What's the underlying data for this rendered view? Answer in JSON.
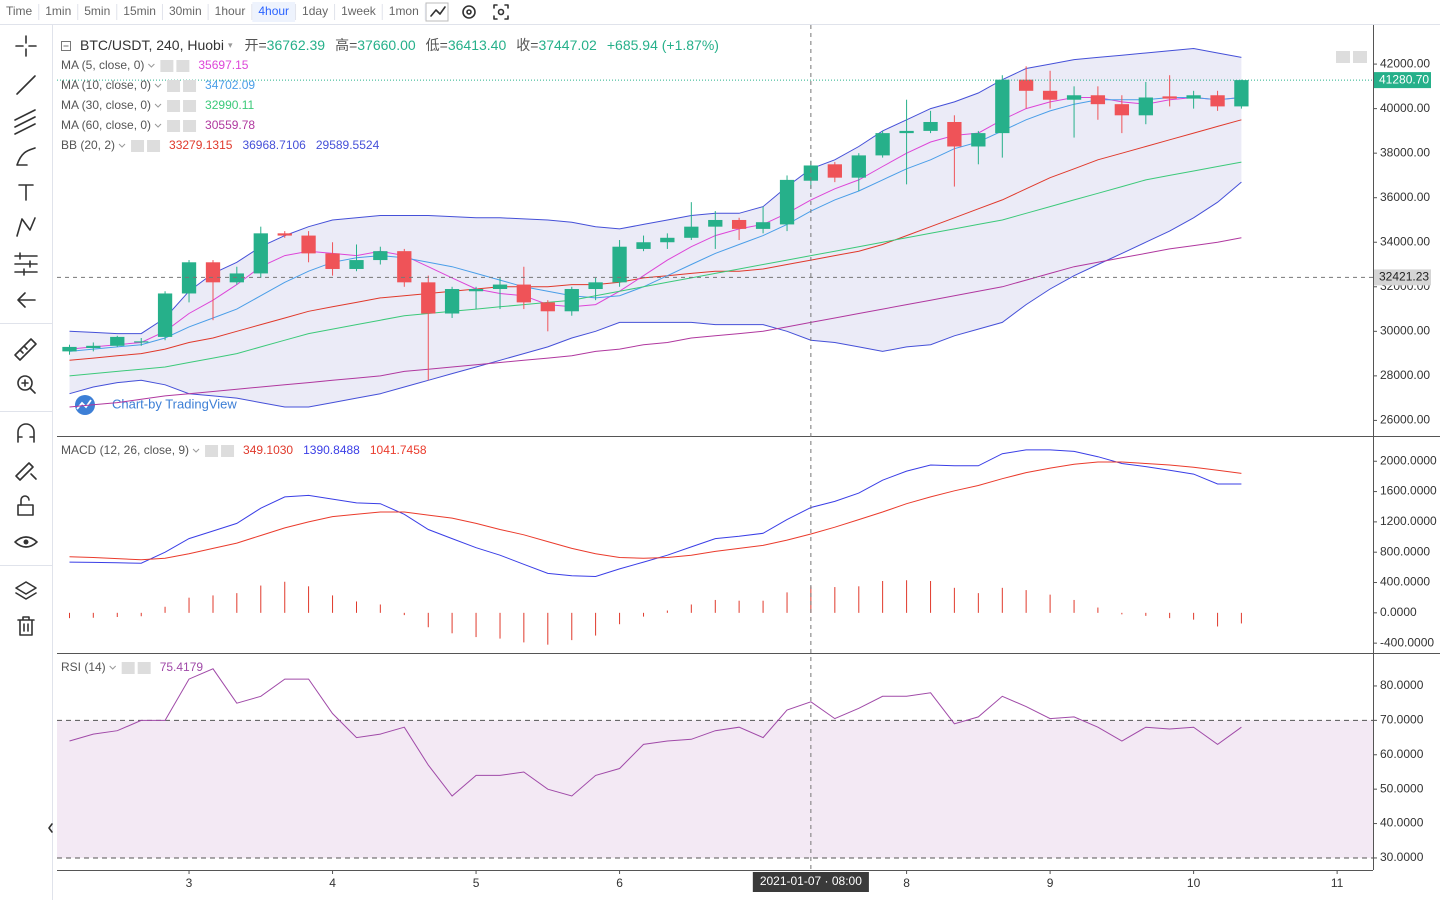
{
  "toolbar": {
    "intervals": [
      "Time",
      "1min",
      "5min",
      "15min",
      "30min",
      "1hour",
      "4hour",
      "1day",
      "1week",
      "1mon"
    ],
    "active": 6
  },
  "watermark": "Chart-by TradingView",
  "crosshair": {
    "x": 7.333,
    "price": 32421.23,
    "price_label": "32421.23",
    "date_label": "2021-01-07 · 08:00"
  },
  "chart_data": [
    {
      "type": "candlestick",
      "title": "BTC/USDT, 240, Huobi",
      "ohlc_legend": [
        {
          "label": "开=",
          "value": "36762.39"
        },
        {
          "label": "高=",
          "value": "37660.00"
        },
        {
          "label": "低=",
          "value": "36413.40"
        },
        {
          "label": "收=",
          "value": "37447.02"
        }
      ],
      "change": "+685.94 (+1.87%)",
      "up_color": "#26b08a",
      "down_color": "#ef5358",
      "x": [
        2.167,
        2.333,
        2.5,
        2.667,
        2.833,
        3,
        3.167,
        3.333,
        3.5,
        3.667,
        3.833,
        4,
        4.167,
        4.333,
        4.5,
        4.667,
        4.833,
        5,
        5.167,
        5.333,
        5.5,
        5.667,
        5.833,
        6,
        6.167,
        6.333,
        6.5,
        6.667,
        6.833,
        7,
        7.167,
        7.333,
        7.5,
        7.667,
        7.833,
        8,
        8.167,
        8.333,
        8.5,
        8.667,
        8.833,
        9,
        9.167,
        9.333,
        9.5,
        9.667,
        9.833,
        10,
        10.167,
        10.333
      ],
      "open": [
        29100,
        29250,
        29350,
        29500,
        29750,
        31700,
        33100,
        32200,
        32600,
        34400,
        34300,
        33500,
        32800,
        33200,
        33600,
        32200,
        30800,
        31800,
        31900,
        32100,
        31300,
        30900,
        31900,
        32200,
        33700,
        34000,
        34200,
        34700,
        35000,
        34600,
        34800,
        36762.39,
        37500,
        36900,
        37900,
        38900,
        39000,
        39400,
        38300,
        38900,
        41300,
        40800,
        40400,
        40600,
        40200,
        39700,
        40550,
        40450,
        40600,
        40100
      ],
      "high": [
        29400,
        29500,
        29800,
        29700,
        31800,
        33200,
        33200,
        32900,
        34700,
        34500,
        34500,
        34000,
        33900,
        33800,
        33700,
        32500,
        32000,
        32000,
        32400,
        32900,
        31400,
        32000,
        32400,
        34100,
        34300,
        34400,
        35800,
        35400,
        35100,
        35600,
        37000,
        37660,
        37600,
        38000,
        39000,
        40400,
        39900,
        39700,
        39000,
        41500,
        41900,
        41700,
        41000,
        41000,
        40600,
        41200,
        41500,
        40800,
        40800,
        41300
      ],
      "low": [
        28950,
        29100,
        29300,
        29350,
        29600,
        31300,
        30500,
        32100,
        32400,
        34200,
        33100,
        32500,
        32700,
        33000,
        32000,
        27800,
        30600,
        31000,
        31000,
        31000,
        30000,
        30700,
        31400,
        32000,
        33600,
        33700,
        34100,
        33700,
        34100,
        34400,
        34500,
        36413.4,
        36700,
        36300,
        37800,
        36600,
        38900,
        36500,
        37500,
        37800,
        40000,
        40000,
        38700,
        39500,
        38900,
        39300,
        40100,
        40000,
        39900,
        40000
      ],
      "close": [
        29300,
        29350,
        29750,
        29550,
        31700,
        33100,
        32200,
        32600,
        34400,
        34300,
        33500,
        32800,
        33200,
        33600,
        32200,
        30800,
        31900,
        31900,
        32100,
        31300,
        30900,
        31900,
        32200,
        33800,
        34000,
        34200,
        34700,
        35000,
        34600,
        34900,
        36800,
        37447.02,
        36900,
        37900,
        38900,
        39000,
        39400,
        38300,
        38900,
        41300,
        40800,
        40400,
        40600,
        40200,
        39700,
        40500,
        40450,
        40600,
        40100,
        41280.7
      ],
      "lines": [
        {
          "name": "MA (5, close, 0)",
          "color": "#dd45d8",
          "legend_value": "35697.15",
          "values": [
            29200,
            29300,
            29400,
            29500,
            30000,
            30800,
            31400,
            32100,
            32900,
            33400,
            33600,
            33500,
            33400,
            33600,
            33400,
            32900,
            32400,
            31900,
            31700,
            31600,
            31200,
            31100,
            31200,
            31800,
            32500,
            33200,
            33800,
            34300,
            34600,
            34800,
            35300,
            35900,
            36400,
            36800,
            37400,
            38000,
            38500,
            38800,
            38900,
            39500,
            40000,
            40300,
            40500,
            40500,
            40300,
            40200,
            40400,
            40500,
            40400,
            40500
          ]
        },
        {
          "name": "MA (10, close, 0)",
          "color": "#4a9ee8",
          "legend_value": "34702.09",
          "values": [
            29100,
            29200,
            29300,
            29400,
            29700,
            30200,
            30600,
            31000,
            31600,
            32200,
            32700,
            33100,
            33300,
            33400,
            33300,
            33100,
            32900,
            32600,
            32300,
            32000,
            31800,
            31600,
            31500,
            31600,
            32000,
            32500,
            33000,
            33500,
            33900,
            34300,
            34800,
            35400,
            35900,
            36300,
            36800,
            37300,
            37700,
            38200,
            38500,
            39000,
            39500,
            39900,
            40200,
            40400,
            40400,
            40400,
            40500,
            40500,
            40400,
            40500
          ]
        },
        {
          "name": "MA (30, close, 0)",
          "color": "#3cc97a",
          "legend_value": "32990.11",
          "values": [
            28000,
            28100,
            28200,
            28300,
            28400,
            28600,
            28800,
            29000,
            29300,
            29600,
            29900,
            30100,
            30300,
            30500,
            30700,
            30800,
            30900,
            31000,
            31100,
            31200,
            31300,
            31400,
            31600,
            31800,
            32000,
            32200,
            32400,
            32600,
            32800,
            33000,
            33200,
            33400,
            33600,
            33800,
            34000,
            34200,
            34400,
            34600,
            34800,
            35000,
            35300,
            35600,
            35900,
            36200,
            36500,
            36800,
            37000,
            37200,
            37400,
            37600
          ]
        },
        {
          "name": "MA (60, close, 0)",
          "color": "#b0389f",
          "legend_value": "30559.78",
          "values": [
            26600,
            26700,
            26800,
            26950,
            27100,
            27200,
            27300,
            27400,
            27500,
            27600,
            27700,
            27800,
            27900,
            28000,
            28200,
            28300,
            28400,
            28500,
            28600,
            28700,
            28800,
            28900,
            29100,
            29200,
            29400,
            29500,
            29700,
            29800,
            29900,
            30000,
            30200,
            30400,
            30600,
            30800,
            31000,
            31200,
            31400,
            31600,
            31800,
            32000,
            32300,
            32600,
            32900,
            33100,
            33300,
            33500,
            33700,
            33850,
            34000,
            34200
          ]
        }
      ],
      "bands": {
        "name": "BB (20, 2)",
        "fill": "rgba(110,110,200,0.14)",
        "series": [
          {
            "color": "#e0392b",
            "legend_value": "33279.1315",
            "values": [
              28700,
              28800,
              28900,
              29000,
              29200,
              29500,
              29700,
              30000,
              30300,
              30600,
              30900,
              31100,
              31300,
              31500,
              31600,
              31700,
              31800,
              31900,
              32000,
              32000,
              32000,
              32100,
              32100,
              32200,
              32400,
              32500,
              32600,
              32700,
              32700,
              32800,
              33000,
              33200,
              33400,
              33600,
              33900,
              34300,
              34700,
              35100,
              35500,
              35900,
              36400,
              36900,
              37300,
              37700,
              38000,
              38300,
              38600,
              38900,
              39200,
              39500
            ]
          },
          {
            "color": "#4550d8",
            "legend_value": "36968.7106",
            "values": [
              30000,
              29950,
              29900,
              29900,
              30600,
              31800,
              32600,
              33100,
              33800,
              34300,
              34700,
              35000,
              35100,
              35200,
              35200,
              35200,
              35150,
              35100,
              35100,
              35050,
              35000,
              34900,
              34700,
              34600,
              34800,
              35000,
              35200,
              35300,
              35300,
              35600,
              36500,
              37300,
              37700,
              38300,
              39000,
              39500,
              40000,
              40300,
              40700,
              41300,
              41800,
              42000,
              42200,
              42300,
              42400,
              42500,
              42600,
              42700,
              42500,
              42300
            ]
          },
          {
            "color": "#4550d8",
            "legend_value": "29589.5524",
            "values": [
              27200,
              27500,
              27700,
              27800,
              27600,
              27200,
              27100,
              27000,
              26800,
              26600,
              26600,
              26800,
              27000,
              27200,
              27500,
              27800,
              28100,
              28400,
              28700,
              29000,
              29300,
              29700,
              30000,
              30400,
              30400,
              30400,
              30400,
              30300,
              30300,
              30300,
              30000,
              29600,
              29500,
              29300,
              29100,
              29300,
              29400,
              29800,
              30100,
              30400,
              31200,
              31900,
              32500,
              33000,
              33500,
              34000,
              34500,
              35100,
              35800,
              36700
            ]
          }
        ]
      },
      "last_price": {
        "value": 41280.7,
        "label": "41280.70",
        "color": "#26b08a"
      },
      "xlim": [
        2.08,
        11.25
      ],
      "xticks": [
        3,
        4,
        5,
        6,
        8,
        9,
        10,
        11
      ],
      "ylim": [
        25300,
        43800
      ],
      "yticks": [
        {
          "value": 26000,
          "label": "26000.00"
        },
        {
          "value": 28000,
          "label": "28000.00"
        },
        {
          "value": 30000,
          "label": "30000.00"
        },
        {
          "value": 32000,
          "label": "32000.00"
        },
        {
          "value": 34000,
          "label": "34000.00"
        },
        {
          "value": 36000,
          "label": "36000.00"
        },
        {
          "value": 38000,
          "label": "38000.00"
        },
        {
          "value": 40000,
          "label": "40000.00"
        },
        {
          "value": 42000,
          "label": "42000.00"
        }
      ],
      "grid": false
    },
    {
      "type": "macd",
      "title": "MACD (12, 26, close, 9)",
      "series": [
        {
          "style": "histogram",
          "color": "#e0392b",
          "legend_value": "349.1030",
          "values": [
            -70,
            -65,
            -55,
            -45,
            80,
            200,
            230,
            260,
            360,
            410,
            350,
            230,
            150,
            110,
            -30,
            -190,
            -270,
            -320,
            -340,
            -390,
            -420,
            -360,
            -300,
            -150,
            -50,
            30,
            110,
            170,
            160,
            160,
            270,
            350,
            340,
            350,
            420,
            430,
            420,
            330,
            260,
            330,
            300,
            240,
            170,
            70,
            -20,
            -40,
            -70,
            -90,
            -180,
            -140
          ]
        },
        {
          "style": "line",
          "color": "#3a3ee6",
          "legend_value": "1390.8488",
          "values": [
            670,
            665,
            660,
            655,
            800,
            980,
            1080,
            1180,
            1380,
            1530,
            1550,
            1500,
            1450,
            1440,
            1300,
            1100,
            980,
            860,
            760,
            640,
            520,
            490,
            480,
            580,
            670,
            760,
            870,
            980,
            1010,
            1050,
            1230,
            1390,
            1470,
            1580,
            1750,
            1870,
            1950,
            1940,
            1940,
            2100,
            2150,
            2150,
            2130,
            2060,
            1970,
            1930,
            1880,
            1830,
            1700,
            1700
          ]
        },
        {
          "style": "line",
          "color": "#ea3b2c",
          "legend_value": "1041.7458",
          "values": [
            740,
            730,
            715,
            700,
            720,
            780,
            850,
            920,
            1020,
            1120,
            1200,
            1270,
            1300,
            1330,
            1330,
            1290,
            1250,
            1180,
            1100,
            1030,
            940,
            850,
            780,
            730,
            720,
            730,
            760,
            810,
            850,
            890,
            960,
            1040,
            1130,
            1230,
            1330,
            1440,
            1530,
            1610,
            1680,
            1770,
            1850,
            1910,
            1960,
            1990,
            1990,
            1970,
            1950,
            1920,
            1880,
            1840
          ]
        }
      ],
      "ylim": [
        -530,
        2320
      ],
      "yticks": [
        {
          "value": -400,
          "label": "-400.0000"
        },
        {
          "value": 0,
          "label": "0.0000"
        },
        {
          "value": 400,
          "label": "400.0000"
        },
        {
          "value": 800,
          "label": "800.0000"
        },
        {
          "value": 1200,
          "label": "1200.0000"
        },
        {
          "value": 1600,
          "label": "1600.0000"
        },
        {
          "value": 2000,
          "label": "2000.0000"
        }
      ]
    },
    {
      "type": "rsi",
      "title": "RSI (14)",
      "series": [
        {
          "color": "#a04aa8",
          "legend_value": "75.4179",
          "values": [
            64,
            66,
            67,
            70,
            70,
            82,
            85,
            75,
            77,
            82,
            82,
            72,
            65,
            66,
            68,
            57,
            48,
            54,
            54,
            55,
            50,
            48,
            54,
            56,
            63,
            64,
            64.5,
            67,
            68,
            65,
            73,
            75.4,
            70.5,
            73.5,
            77,
            77,
            78,
            69,
            71,
            77,
            74,
            70.5,
            71,
            68,
            64,
            68,
            67.5,
            68,
            63,
            68
          ]
        }
      ],
      "band": {
        "upper": 70,
        "lower": 30,
        "fill": "rgba(160,74,168,0.12)"
      },
      "ylim": [
        26.5,
        89
      ],
      "yticks": [
        {
          "value": 30,
          "label": "30.0000"
        },
        {
          "value": 40,
          "label": "40.0000"
        },
        {
          "value": 50,
          "label": "50.0000"
        },
        {
          "value": 60,
          "label": "60.0000"
        },
        {
          "value": 70,
          "label": "70.0000"
        },
        {
          "value": 80,
          "label": "80.0000"
        }
      ]
    }
  ]
}
